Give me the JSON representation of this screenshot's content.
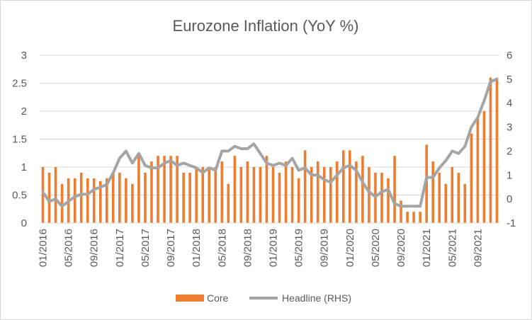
{
  "chart_data": {
    "type": "bar",
    "title": "Eurozone Inflation (YoY %)",
    "xlabel": "",
    "ylabel": "",
    "ylim": [
      0,
      3
    ],
    "y2lim": [
      -1,
      6
    ],
    "y_ticks": [
      "0",
      "0.5",
      "1",
      "1.5",
      "2",
      "2.5",
      "3"
    ],
    "y2_ticks": [
      "-1",
      "0",
      "1",
      "2",
      "3",
      "4",
      "5",
      "6"
    ],
    "x_tick_labels": [
      "01/2016",
      "05/2016",
      "09/2016",
      "01/2017",
      "05/2017",
      "09/2017",
      "01/2018",
      "05/2018",
      "09/2018",
      "01/2019",
      "05/2019",
      "09/2019",
      "01/2020",
      "05/2020",
      "09/2020",
      "01/2021",
      "05/2021",
      "09/2021"
    ],
    "grid": true,
    "legend_position": "bottom",
    "colors": {
      "core": "#ED7D31",
      "headline": "#A5A5A5",
      "grid": "#D9D9D9",
      "text": "#595959"
    },
    "categories": [
      "01/2016",
      "02/2016",
      "03/2016",
      "04/2016",
      "05/2016",
      "06/2016",
      "07/2016",
      "08/2016",
      "09/2016",
      "10/2016",
      "11/2016",
      "12/2016",
      "01/2017",
      "02/2017",
      "03/2017",
      "04/2017",
      "05/2017",
      "06/2017",
      "07/2017",
      "08/2017",
      "09/2017",
      "10/2017",
      "11/2017",
      "12/2017",
      "01/2018",
      "02/2018",
      "03/2018",
      "04/2018",
      "05/2018",
      "06/2018",
      "07/2018",
      "08/2018",
      "09/2018",
      "10/2018",
      "11/2018",
      "12/2018",
      "01/2019",
      "02/2019",
      "03/2019",
      "04/2019",
      "05/2019",
      "06/2019",
      "07/2019",
      "08/2019",
      "09/2019",
      "10/2019",
      "11/2019",
      "12/2019",
      "01/2020",
      "02/2020",
      "03/2020",
      "04/2020",
      "05/2020",
      "06/2020",
      "07/2020",
      "08/2020",
      "09/2020",
      "10/2020",
      "11/2020",
      "12/2020",
      "01/2021",
      "02/2021",
      "03/2021",
      "04/2021",
      "05/2021",
      "06/2021",
      "07/2021",
      "08/2021",
      "09/2021",
      "10/2021",
      "11/2021",
      "12/2021"
    ],
    "series": [
      {
        "name": "Core",
        "type": "bar",
        "axis": "left",
        "values": [
          1.0,
          0.9,
          1.0,
          0.7,
          0.8,
          0.8,
          0.9,
          0.8,
          0.8,
          0.75,
          0.8,
          0.9,
          0.9,
          0.8,
          0.7,
          1.2,
          0.9,
          1.1,
          1.2,
          1.2,
          1.2,
          1.2,
          0.9,
          0.9,
          1.0,
          1.0,
          1.0,
          1.0,
          1.1,
          0.7,
          1.2,
          1.0,
          1.1,
          1.0,
          1.0,
          1.2,
          1.0,
          0.9,
          1.1,
          1.0,
          0.8,
          1.3,
          1.0,
          1.1,
          1.0,
          1.0,
          1.1,
          1.3,
          1.3,
          1.1,
          1.2,
          1.0,
          0.9,
          0.9,
          0.8,
          1.2,
          0.4,
          0.2,
          0.2,
          0.2,
          1.4,
          1.1,
          0.9,
          0.7,
          1.0,
          0.9,
          0.7,
          1.6,
          1.9,
          2.0,
          2.6,
          2.6
        ]
      },
      {
        "name": "Headline (RHS)",
        "type": "line",
        "axis": "right",
        "values": [
          0.3,
          -0.1,
          0.0,
          -0.3,
          -0.1,
          0.1,
          0.2,
          0.2,
          0.4,
          0.5,
          0.6,
          1.1,
          1.7,
          2.0,
          1.5,
          1.9,
          1.4,
          1.3,
          1.3,
          1.5,
          1.6,
          1.4,
          1.5,
          1.4,
          1.3,
          1.1,
          1.3,
          1.2,
          2.0,
          2.0,
          2.2,
          2.1,
          2.1,
          2.3,
          1.9,
          1.5,
          1.4,
          1.5,
          1.4,
          1.7,
          1.2,
          1.3,
          1.0,
          1.0,
          0.8,
          0.7,
          1.0,
          1.3,
          1.4,
          1.2,
          0.7,
          0.3,
          0.1,
          0.3,
          0.4,
          -0.2,
          -0.3,
          -0.3,
          -0.3,
          -0.3,
          0.9,
          0.9,
          1.3,
          1.6,
          2.0,
          1.9,
          2.2,
          3.0,
          3.4,
          4.1,
          4.9,
          5.0
        ]
      }
    ]
  }
}
